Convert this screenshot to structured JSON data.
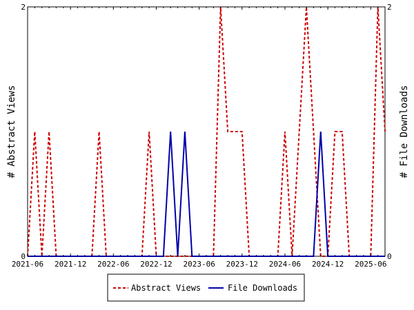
{
  "chart_data": {
    "type": "line",
    "ylabel_left": "# Abstract Views",
    "ylabel_right": "# File Downloads",
    "ylim": [
      0,
      2
    ],
    "y_ticks": [
      "0",
      "2"
    ],
    "x_ticks": [
      "2021-06",
      "2021-12",
      "2022-06",
      "2022-12",
      "2023-06",
      "2023-12",
      "2024-06",
      "2024-12",
      "2025-06"
    ],
    "x": [
      "2021-06",
      "2021-07",
      "2021-08",
      "2021-09",
      "2021-10",
      "2021-11",
      "2021-12",
      "2022-01",
      "2022-02",
      "2022-03",
      "2022-04",
      "2022-05",
      "2022-06",
      "2022-07",
      "2022-08",
      "2022-09",
      "2022-10",
      "2022-11",
      "2022-12",
      "2023-01",
      "2023-02",
      "2023-03",
      "2023-04",
      "2023-05",
      "2023-06",
      "2023-07",
      "2023-08",
      "2023-09",
      "2023-10",
      "2023-11",
      "2023-12",
      "2024-01",
      "2024-02",
      "2024-03",
      "2024-04",
      "2024-05",
      "2024-06",
      "2024-07",
      "2024-08",
      "2024-09",
      "2024-10",
      "2024-11",
      "2024-12",
      "2025-01",
      "2025-02",
      "2025-03",
      "2025-04",
      "2025-05",
      "2025-06",
      "2025-07",
      "2025-08"
    ],
    "series": [
      {
        "name": "Abstract Views",
        "color": "#cc0000",
        "style": "dashed",
        "values": [
          0,
          1,
          0,
          1,
          0,
          0,
          0,
          0,
          0,
          0,
          1,
          0,
          0,
          0,
          0,
          0,
          0,
          1,
          0,
          0,
          0,
          0,
          0,
          0,
          0,
          0,
          0,
          2,
          1,
          1,
          1,
          0,
          0,
          0,
          0,
          0,
          1,
          0,
          1,
          2,
          1,
          0,
          0,
          1,
          1,
          0,
          0,
          0,
          0,
          2,
          1
        ]
      },
      {
        "name": "File Downloads",
        "color": "#0000aa",
        "style": "solid",
        "values": [
          0,
          0,
          0,
          0,
          0,
          0,
          0,
          0,
          0,
          0,
          0,
          0,
          0,
          0,
          0,
          0,
          0,
          0,
          0,
          0,
          1,
          0,
          1,
          0,
          0,
          0,
          0,
          0,
          0,
          0,
          0,
          0,
          0,
          0,
          0,
          0,
          0,
          0,
          0,
          0,
          0,
          1,
          0,
          0,
          0,
          0,
          0,
          0,
          0,
          0,
          0
        ]
      }
    ],
    "legend": {
      "placement": "bottom",
      "entries": [
        "Abstract Views",
        "File Downloads"
      ]
    },
    "grid": false
  }
}
